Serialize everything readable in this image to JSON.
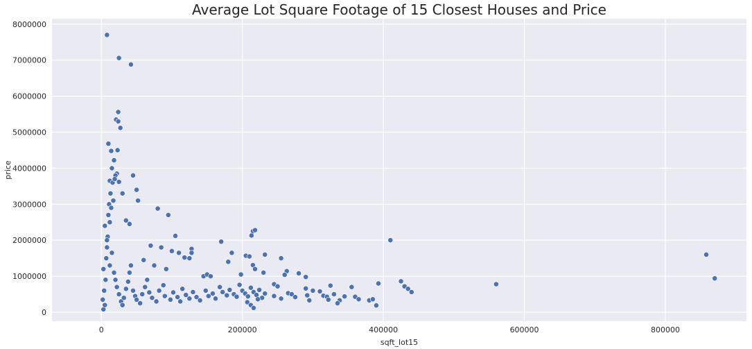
{
  "chart_data": {
    "type": "scatter",
    "title": "Average Lot Square Footage of 15 Closest Houses and Price",
    "xlabel": "sqft_lot15",
    "ylabel": "price",
    "xlim": [
      -70000,
      915000
    ],
    "ylim": [
      -250000,
      8150000
    ],
    "x_ticks": [
      0,
      200000,
      400000,
      600000,
      800000
    ],
    "x_tick_labels": [
      "0",
      "200000",
      "400000",
      "600000",
      "800000"
    ],
    "y_ticks": [
      0,
      1000000,
      2000000,
      3000000,
      4000000,
      5000000,
      6000000,
      7000000,
      8000000
    ],
    "y_tick_labels": [
      "0",
      "1000000",
      "2000000",
      "3000000",
      "4000000",
      "5000000",
      "6000000",
      "7000000",
      "8000000"
    ],
    "grid": true,
    "colors": {
      "background": "#eaeaf2",
      "grid": "#ffffff",
      "marker": "#4c72b0",
      "marker_edge": "#ffffff"
    },
    "points": [
      [
        8000,
        7700000
      ],
      [
        25000,
        7060000
      ],
      [
        42000,
        6880000
      ],
      [
        24000,
        5560000
      ],
      [
        21000,
        5350000
      ],
      [
        24000,
        5300000
      ],
      [
        27000,
        5120000
      ],
      [
        10000,
        4680000
      ],
      [
        23000,
        4500000
      ],
      [
        14000,
        4480000
      ],
      [
        18000,
        4220000
      ],
      [
        15000,
        4000000
      ],
      [
        45000,
        3800000
      ],
      [
        22000,
        3850000
      ],
      [
        20000,
        3800000
      ],
      [
        50000,
        3400000
      ],
      [
        52000,
        3100000
      ],
      [
        30000,
        3300000
      ],
      [
        12000,
        3650000
      ],
      [
        16000,
        3600000
      ],
      [
        25000,
        3620000
      ],
      [
        19000,
        3700000
      ],
      [
        80000,
        2880000
      ],
      [
        95000,
        2700000
      ],
      [
        40000,
        2450000
      ],
      [
        35000,
        2550000
      ],
      [
        105000,
        2120000
      ],
      [
        410000,
        2000000
      ],
      [
        170000,
        1960000
      ],
      [
        215000,
        2250000
      ],
      [
        218000,
        2280000
      ],
      [
        213000,
        2130000
      ],
      [
        70000,
        1850000
      ],
      [
        85000,
        1800000
      ],
      [
        100000,
        1700000
      ],
      [
        110000,
        1650000
      ],
      [
        128000,
        1760000
      ],
      [
        128000,
        1650000
      ],
      [
        118000,
        1520000
      ],
      [
        125000,
        1500000
      ],
      [
        185000,
        1650000
      ],
      [
        205000,
        1570000
      ],
      [
        210000,
        1550000
      ],
      [
        232000,
        1600000
      ],
      [
        255000,
        1500000
      ],
      [
        180000,
        1400000
      ],
      [
        215000,
        1310000
      ],
      [
        218000,
        1200000
      ],
      [
        60000,
        1450000
      ],
      [
        75000,
        1300000
      ],
      [
        92000,
        1200000
      ],
      [
        145000,
        1000000
      ],
      [
        150000,
        1050000
      ],
      [
        155000,
        1000000
      ],
      [
        198000,
        1050000
      ],
      [
        230000,
        1100000
      ],
      [
        263000,
        1140000
      ],
      [
        280000,
        1080000
      ],
      [
        260000,
        1040000
      ],
      [
        290000,
        980000
      ],
      [
        245000,
        780000
      ],
      [
        250000,
        720000
      ],
      [
        265000,
        530000
      ],
      [
        270000,
        500000
      ],
      [
        275000,
        420000
      ],
      [
        245000,
        450000
      ],
      [
        255000,
        380000
      ],
      [
        290000,
        660000
      ],
      [
        300000,
        600000
      ],
      [
        292000,
        470000
      ],
      [
        295000,
        330000
      ],
      [
        310000,
        580000
      ],
      [
        315000,
        460000
      ],
      [
        325000,
        740000
      ],
      [
        330000,
        500000
      ],
      [
        320000,
        430000
      ],
      [
        338000,
        330000
      ],
      [
        322000,
        350000
      ],
      [
        335000,
        250000
      ],
      [
        345000,
        440000
      ],
      [
        355000,
        700000
      ],
      [
        360000,
        430000
      ],
      [
        365000,
        360000
      ],
      [
        380000,
        330000
      ],
      [
        385000,
        360000
      ],
      [
        390000,
        190000
      ],
      [
        393000,
        800000
      ],
      [
        425000,
        860000
      ],
      [
        430000,
        720000
      ],
      [
        435000,
        650000
      ],
      [
        440000,
        560000
      ],
      [
        560000,
        780000
      ],
      [
        858000,
        1600000
      ],
      [
        870000,
        940000
      ],
      [
        3000,
        80000
      ],
      [
        5000,
        200000
      ],
      [
        2000,
        350000
      ],
      [
        4000,
        600000
      ],
      [
        6000,
        900000
      ],
      [
        3000,
        1200000
      ],
      [
        7000,
        1500000
      ],
      [
        8000,
        1800000
      ],
      [
        9000,
        2100000
      ],
      [
        5000,
        2400000
      ],
      [
        10000,
        2700000
      ],
      [
        11000,
        3000000
      ],
      [
        13000,
        3300000
      ],
      [
        14000,
        2900000
      ],
      [
        17000,
        3100000
      ],
      [
        12000,
        2500000
      ],
      [
        8000,
        2000000
      ],
      [
        15000,
        1650000
      ],
      [
        12000,
        1300000
      ],
      [
        18000,
        1100000
      ],
      [
        20000,
        900000
      ],
      [
        22000,
        700000
      ],
      [
        25000,
        500000
      ],
      [
        28000,
        300000
      ],
      [
        30000,
        200000
      ],
      [
        32000,
        400000
      ],
      [
        35000,
        650000
      ],
      [
        38000,
        850000
      ],
      [
        40000,
        1100000
      ],
      [
        42000,
        1300000
      ],
      [
        45000,
        600000
      ],
      [
        48000,
        450000
      ],
      [
        50000,
        350000
      ],
      [
        55000,
        250000
      ],
      [
        58000,
        500000
      ],
      [
        62000,
        700000
      ],
      [
        65000,
        900000
      ],
      [
        68000,
        550000
      ],
      [
        72000,
        400000
      ],
      [
        78000,
        300000
      ],
      [
        82000,
        600000
      ],
      [
        88000,
        750000
      ],
      [
        90000,
        450000
      ],
      [
        98000,
        350000
      ],
      [
        102000,
        550000
      ],
      [
        108000,
        420000
      ],
      [
        112000,
        300000
      ],
      [
        115000,
        650000
      ],
      [
        120000,
        480000
      ],
      [
        125000,
        380000
      ],
      [
        130000,
        560000
      ],
      [
        135000,
        420000
      ],
      [
        140000,
        330000
      ],
      [
        148000,
        600000
      ],
      [
        152000,
        450000
      ],
      [
        158000,
        520000
      ],
      [
        162000,
        380000
      ],
      [
        168000,
        700000
      ],
      [
        172000,
        560000
      ],
      [
        178000,
        470000
      ],
      [
        182000,
        620000
      ],
      [
        188000,
        500000
      ],
      [
        192000,
        430000
      ],
      [
        196000,
        760000
      ],
      [
        200000,
        600000
      ],
      [
        204000,
        520000
      ],
      [
        208000,
        440000
      ],
      [
        212000,
        680000
      ],
      [
        216000,
        560000
      ],
      [
        220000,
        480000
      ],
      [
        224000,
        620000
      ],
      [
        228000,
        400000
      ],
      [
        232000,
        520000
      ],
      [
        207000,
        280000
      ],
      [
        212000,
        200000
      ],
      [
        216000,
        120000
      ],
      [
        222000,
        360000
      ]
    ]
  }
}
